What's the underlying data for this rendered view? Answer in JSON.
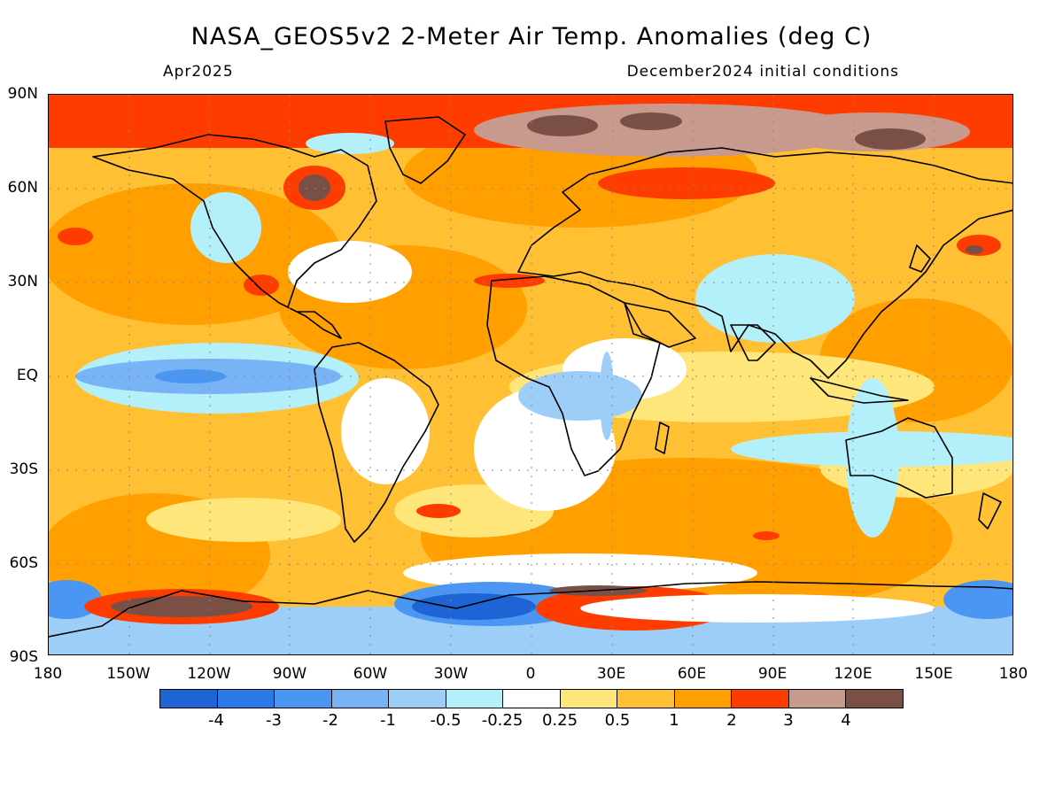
{
  "header": {
    "title": "NASA_GEOS5v2 2-Meter Air Temp. Anomalies (deg C)",
    "left_subtitle": "Apr2025",
    "right_subtitle": "December2024 initial conditions"
  },
  "axes": {
    "lat_labels": [
      "90N",
      "60N",
      "30N",
      "EQ",
      "30S",
      "60S",
      "90S"
    ],
    "lon_labels": [
      "180",
      "150W",
      "120W",
      "90W",
      "60W",
      "30W",
      "0",
      "30E",
      "60E",
      "90E",
      "120E",
      "150E",
      "180"
    ]
  },
  "colorbar": {
    "colors": [
      "#1f64d4",
      "#2a7ae8",
      "#4a96f2",
      "#78b4f5",
      "#9ccef8",
      "#b4f0fa",
      "#ffffff",
      "#ffe67a",
      "#ffc034",
      "#ffa000",
      "#ff3c00",
      "#c89a8e",
      "#7a5046"
    ],
    "labels": [
      "-4",
      "-3",
      "-2",
      "-1",
      "-0.5",
      "-0.25",
      "0.25",
      "0.5",
      "1",
      "2",
      "3",
      "4"
    ]
  },
  "legend_meaning": {
    "colors": {
      "cold_strong": "#1f64d4",
      "neutral": "#ffffff",
      "warm_strong": "#ff3c00",
      "extreme_warm": "#7a5046"
    }
  }
}
